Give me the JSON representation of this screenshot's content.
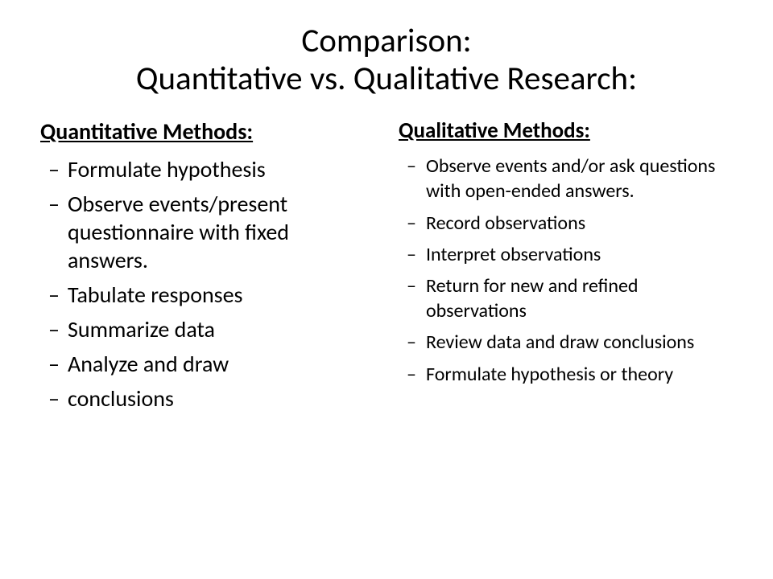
{
  "title": "Comparison:\nQuantitative vs. Qualitative Research:",
  "left": {
    "heading": "Quantitative Methods:",
    "items": [
      "Formulate hypothesis",
      "Observe events/present questionnaire with fixed answers.",
      "Tabulate responses",
      "Summarize data",
      "Analyze and draw",
      "conclusions"
    ]
  },
  "right": {
    "heading": "Qualitative Methods:",
    "items": [
      "Observe events and/or ask questions with open-ended answers.",
      "Record observations",
      "Interpret observations",
      "Return for new and refined observations",
      "Review data and draw conclusions",
      "Formulate hypothesis or theory"
    ]
  },
  "style": {
    "background_color": "#ffffff",
    "text_color": "#000000",
    "font_family": "Calibri",
    "title_fontsize": 41,
    "left_item_fontsize": 28,
    "right_item_fontsize": 24,
    "heading_fontsize": 28,
    "bullet_glyph": "–"
  }
}
